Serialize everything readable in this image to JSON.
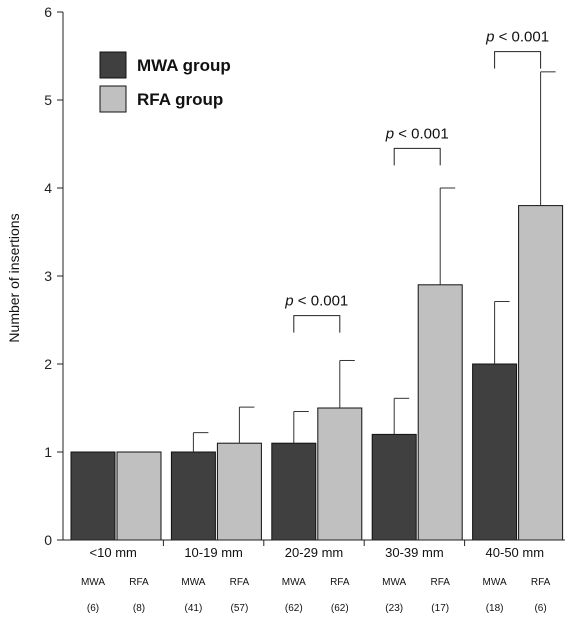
{
  "chart_data": {
    "type": "bar",
    "ylabel": "Number of insertions",
    "ylim": [
      0,
      6
    ],
    "yticks": [
      0,
      1,
      2,
      3,
      4,
      5,
      6
    ],
    "categories": [
      "<10 mm",
      "10-19 mm",
      "20-29 mm",
      "30-39 mm",
      "40-50 mm"
    ],
    "series": [
      {
        "name": "MWA group",
        "short": "MWA",
        "color": "#404040",
        "values": [
          1.0,
          1.0,
          1.1,
          1.2,
          2.0
        ],
        "error": [
          0,
          0.22,
          0.36,
          0.41,
          0.71
        ],
        "n": [
          "(6)",
          "(41)",
          "(62)",
          "(23)",
          "(18)"
        ]
      },
      {
        "name": "RFA group",
        "short": "RFA",
        "color": "#c0c0c0",
        "values": [
          1.0,
          1.1,
          1.5,
          2.9,
          3.8
        ],
        "error": [
          0,
          0.41,
          0.54,
          1.1,
          1.52
        ],
        "n": [
          "(8)",
          "(57)",
          "(62)",
          "(17)",
          "(6)"
        ]
      }
    ],
    "annotations": [
      {
        "category_index": 2,
        "text": "p < 0.001",
        "bracket_y": 2.55
      },
      {
        "category_index": 3,
        "text": "p < 0.001",
        "bracket_y": 4.45
      },
      {
        "category_index": 4,
        "text": "p < 0.001",
        "bracket_y": 5.55
      }
    ],
    "legend_position": "top-left",
    "grid": false
  }
}
